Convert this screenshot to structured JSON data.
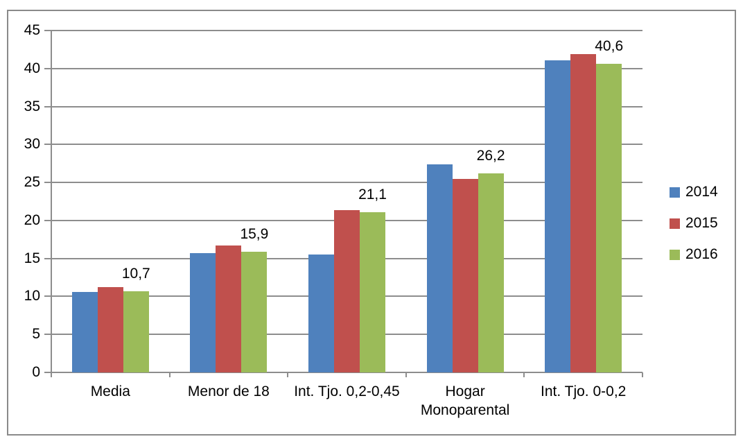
{
  "window": {
    "background": "#FFFFFF",
    "border_color": "#8A8A8A"
  },
  "chart_data": {
    "type": "bar",
    "title": "",
    "xlabel": "",
    "ylabel": "",
    "categories": [
      "Media",
      "Menor de 18",
      "Int. Tjo. 0,2-0,45",
      "Hogar Monoparental",
      "Int. Tjo. 0-0,2"
    ],
    "category_display_lines": [
      [
        "Media"
      ],
      [
        "Menor de 18"
      ],
      [
        "Int. Tjo. 0,2-0,45"
      ],
      [
        "Hogar",
        "Monoparental"
      ],
      [
        "Int. Tjo. 0-0,2"
      ]
    ],
    "series": [
      {
        "name": "2014",
        "color": "#4F81BD",
        "values": [
          10.6,
          15.7,
          15.5,
          27.4,
          41.1
        ]
      },
      {
        "name": "2015",
        "color": "#C0504D",
        "values": [
          11.2,
          16.7,
          21.4,
          25.5,
          41.9
        ]
      },
      {
        "name": "2016",
        "color": "#9BBB59",
        "values": [
          10.7,
          15.9,
          21.1,
          26.2,
          40.6
        ],
        "data_labels": [
          "10,7",
          "15,9",
          "21,1",
          "26,2",
          "40,6"
        ]
      }
    ],
    "ylim": [
      0,
      45
    ],
    "ytick_step": 5,
    "ytick_labels": [
      "0",
      "5",
      "10",
      "15",
      "20",
      "25",
      "30",
      "35",
      "40",
      "45"
    ],
    "grid": true,
    "gridline_color": "#8D8D8D",
    "axis_color": "#8D8D8D",
    "legend": {
      "position": "right",
      "entries": [
        "2014",
        "2015",
        "2016"
      ]
    },
    "decimal_separator": ","
  }
}
